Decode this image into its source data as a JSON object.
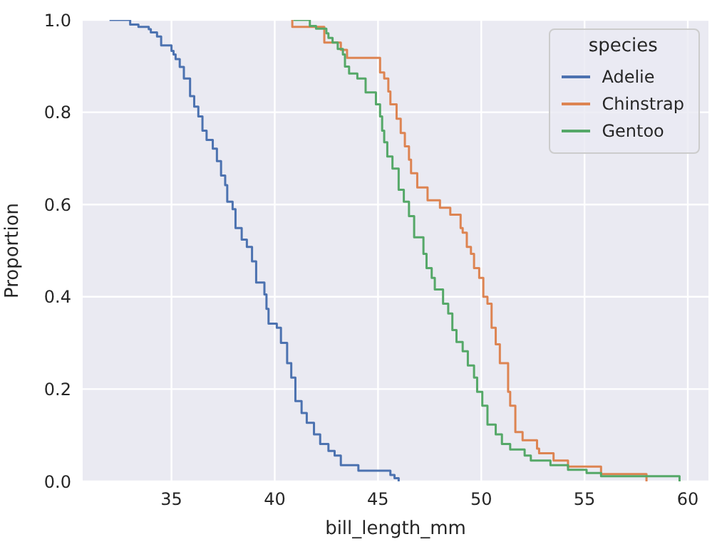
{
  "chart_data": {
    "type": "step",
    "xlabel": "bill_length_mm",
    "ylabel": "Proportion",
    "legend_title": "species",
    "legend": "top right",
    "grid": true,
    "xlim": [
      30.7,
      61.0
    ],
    "xticks": [
      35,
      40,
      45,
      50,
      55,
      60
    ],
    "ylim": [
      0,
      1
    ],
    "yticks": [
      {
        "value": 0,
        "label": "0.0"
      },
      {
        "value": 0.2,
        "label": "0.2"
      },
      {
        "value": 0.4,
        "label": "0.4"
      },
      {
        "value": 0.6,
        "label": "0.6"
      },
      {
        "value": 0.8,
        "label": "0.8"
      },
      {
        "value": 1,
        "label": "1.0"
      }
    ],
    "series": [
      {
        "name": "Adelie",
        "color": "#4c72b0",
        "x": [
          32.0,
          33.0,
          33.4,
          33.9,
          34.0,
          34.3,
          34.5,
          35.0,
          35.1,
          35.2,
          35.4,
          35.6,
          35.9,
          36.1,
          36.3,
          36.5,
          36.7,
          37.0,
          37.2,
          37.4,
          37.6,
          37.7,
          37.96,
          38.1,
          38.4,
          38.65,
          38.9,
          39.1,
          39.5,
          39.6,
          39.7,
          40.1,
          40.3,
          40.6,
          40.8,
          41.0,
          41.3,
          41.55,
          41.9,
          42.2,
          42.6,
          42.9,
          43.2,
          44.05,
          45.6,
          45.8,
          46.0
        ],
        "values": [
          1.0,
          0.99,
          0.985,
          0.98,
          0.973,
          0.964,
          0.945,
          0.933,
          0.925,
          0.915,
          0.898,
          0.873,
          0.835,
          0.812,
          0.791,
          0.76,
          0.74,
          0.721,
          0.694,
          0.663,
          0.642,
          0.606,
          0.59,
          0.549,
          0.524,
          0.508,
          0.477,
          0.431,
          0.405,
          0.374,
          0.342,
          0.333,
          0.3,
          0.256,
          0.225,
          0.174,
          0.148,
          0.127,
          0.102,
          0.081,
          0.066,
          0.056,
          0.035,
          0.023,
          0.014,
          0.007,
          0.0
        ]
      },
      {
        "name": "Chinstrap",
        "color": "#dd8452",
        "x": [
          40.8,
          40.85,
          42.4,
          43.2,
          43.5,
          45.1,
          45.3,
          45.5,
          45.6,
          45.9,
          46.1,
          46.3,
          46.5,
          46.6,
          46.9,
          47.4,
          48.0,
          48.5,
          49.0,
          49.1,
          49.3,
          49.5,
          49.65,
          49.9,
          50.1,
          50.3,
          50.5,
          50.7,
          50.9,
          51.3,
          51.4,
          51.65,
          52.0,
          52.7,
          52.8,
          53.5,
          54.2,
          55.8,
          58.0
        ],
        "values": [
          1.0,
          0.985,
          0.951,
          0.935,
          0.918,
          0.886,
          0.873,
          0.845,
          0.817,
          0.786,
          0.755,
          0.726,
          0.697,
          0.668,
          0.637,
          0.609,
          0.593,
          0.578,
          0.549,
          0.539,
          0.508,
          0.493,
          0.462,
          0.441,
          0.4,
          0.385,
          0.333,
          0.297,
          0.256,
          0.194,
          0.164,
          0.107,
          0.089,
          0.071,
          0.061,
          0.045,
          0.032,
          0.016,
          0.0
        ]
      },
      {
        "name": "Gentoo",
        "color": "#55a868",
        "x": [
          40.9,
          41.7,
          42.0,
          42.5,
          42.6,
          42.8,
          43.05,
          43.3,
          43.4,
          43.6,
          44.0,
          44.4,
          44.9,
          45.1,
          45.2,
          45.3,
          45.45,
          45.7,
          46.0,
          46.25,
          46.5,
          46.75,
          47.2,
          47.35,
          47.6,
          47.75,
          48.15,
          48.4,
          48.6,
          48.8,
          49.1,
          49.35,
          49.65,
          49.8,
          50.05,
          50.3,
          50.7,
          51.0,
          51.4,
          52.1,
          52.4,
          53.35,
          54.2,
          55.1,
          55.8,
          59.6
        ],
        "values": [
          1.0,
          0.987,
          0.981,
          0.971,
          0.961,
          0.951,
          0.937,
          0.925,
          0.899,
          0.884,
          0.873,
          0.843,
          0.817,
          0.791,
          0.76,
          0.735,
          0.704,
          0.678,
          0.632,
          0.606,
          0.575,
          0.529,
          0.493,
          0.462,
          0.441,
          0.416,
          0.385,
          0.364,
          0.328,
          0.302,
          0.282,
          0.251,
          0.225,
          0.194,
          0.164,
          0.123,
          0.102,
          0.081,
          0.069,
          0.056,
          0.045,
          0.035,
          0.025,
          0.018,
          0.011,
          0.0
        ]
      }
    ]
  }
}
